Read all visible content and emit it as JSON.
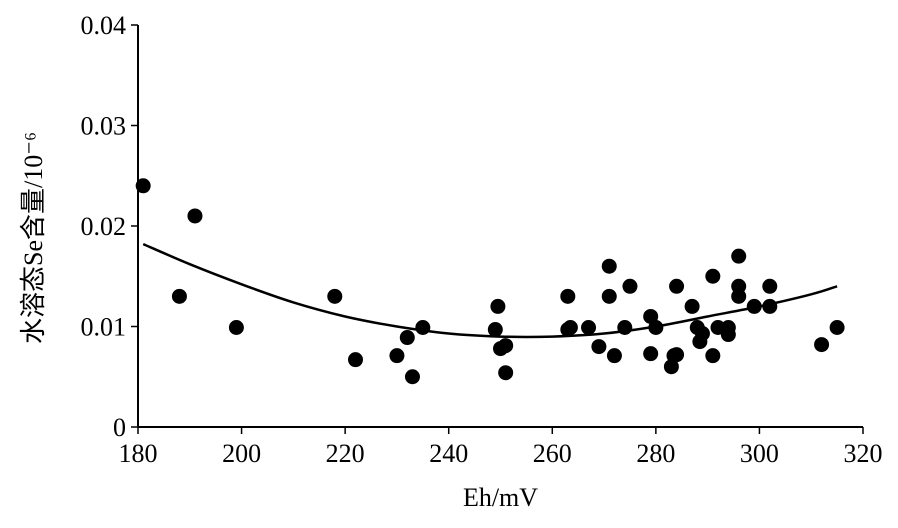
{
  "chart_data": {
    "type": "scatter",
    "title": "",
    "xlabel": "Eh/mV",
    "ylabel": "水溶态Se含量/10⁻⁶",
    "xlim": [
      180,
      320
    ],
    "ylim": [
      0,
      0.04
    ],
    "x_ticks": [
      "180",
      "200",
      "220",
      "240",
      "260",
      "280",
      "300",
      "320"
    ],
    "y_ticks": [
      "0",
      "0.01",
      "0.02",
      "0.03",
      "0.04"
    ],
    "grid": false,
    "legend": "none",
    "colors": {
      "points": "#000000",
      "curve": "#000000",
      "axes": "#000000"
    },
    "points": [
      [
        181,
        0.024
      ],
      [
        188,
        0.013
      ],
      [
        191,
        0.021
      ],
      [
        199,
        0.0099
      ],
      [
        218,
        0.013
      ],
      [
        222,
        0.0067
      ],
      [
        230,
        0.0071
      ],
      [
        232,
        0.0089
      ],
      [
        233,
        0.005
      ],
      [
        235,
        0.0099
      ],
      [
        249,
        0.0097
      ],
      [
        249.5,
        0.012
      ],
      [
        250,
        0.0078
      ],
      [
        251,
        0.0081
      ],
      [
        251,
        0.0054
      ],
      [
        263,
        0.013
      ],
      [
        263,
        0.0097
      ],
      [
        263.5,
        0.0099
      ],
      [
        267,
        0.0099
      ],
      [
        269,
        0.008
      ],
      [
        271,
        0.016
      ],
      [
        271,
        0.013
      ],
      [
        272,
        0.0071
      ],
      [
        274,
        0.0099
      ],
      [
        275,
        0.014
      ],
      [
        279,
        0.011
      ],
      [
        279,
        0.0073
      ],
      [
        280,
        0.0099
      ],
      [
        283,
        0.006
      ],
      [
        283.5,
        0.0071
      ],
      [
        284,
        0.014
      ],
      [
        284,
        0.0072
      ],
      [
        287,
        0.012
      ],
      [
        288,
        0.0099
      ],
      [
        288.5,
        0.0085
      ],
      [
        289,
        0.0093
      ],
      [
        291,
        0.015
      ],
      [
        291,
        0.0071
      ],
      [
        292,
        0.0099
      ],
      [
        294,
        0.0099
      ],
      [
        294,
        0.0092
      ],
      [
        296,
        0.017
      ],
      [
        296,
        0.014
      ],
      [
        296,
        0.013
      ],
      [
        299,
        0.012
      ],
      [
        302,
        0.014
      ],
      [
        302,
        0.012
      ],
      [
        312,
        0.0082
      ],
      [
        315,
        0.0099
      ]
    ],
    "trend_curve": [
      [
        181,
        0.0182
      ],
      [
        190,
        0.0162
      ],
      [
        200,
        0.0142
      ],
      [
        210,
        0.0124
      ],
      [
        220,
        0.011
      ],
      [
        230,
        0.01
      ],
      [
        240,
        0.0093
      ],
      [
        250,
        0.009
      ],
      [
        260,
        0.009
      ],
      [
        270,
        0.0093
      ],
      [
        280,
        0.01
      ],
      [
        290,
        0.011
      ],
      [
        300,
        0.012
      ],
      [
        310,
        0.0132
      ],
      [
        315,
        0.014
      ]
    ]
  }
}
